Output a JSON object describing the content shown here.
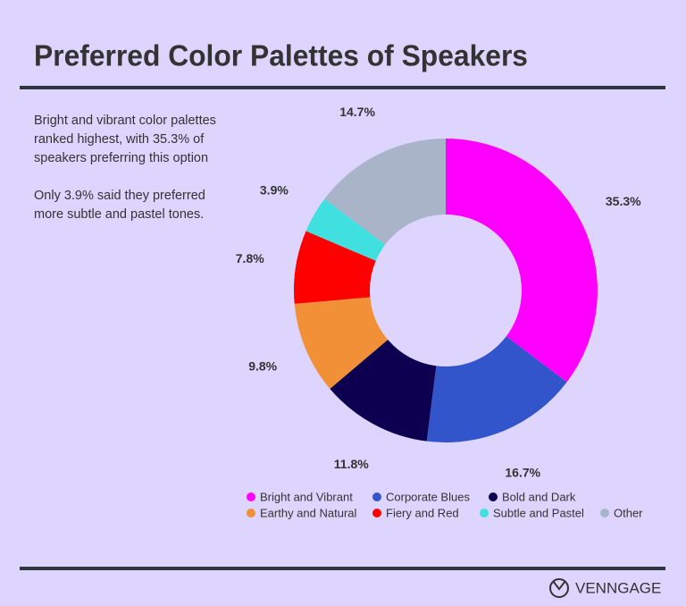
{
  "chart_data": {
    "type": "pie",
    "title": "Preferred Color Palettes of Speakers",
    "annotations": [
      [
        "Bright and vibrant color palettes",
        "ranked highest, with 35.3% of",
        "speakers preferring this option"
      ],
      [
        "Only 3.9% said they preferred",
        "more subtle and pastel tones."
      ]
    ],
    "categories": [
      "Bright and Vibrant",
      "Corporate Blues",
      "Bold and Dark",
      "Earthy and Natural",
      "Fiery and Red",
      "Subtle and Pastel",
      "Other"
    ],
    "values": [
      35.3,
      16.7,
      11.8,
      9.8,
      7.8,
      3.9,
      14.7
    ],
    "value_labels": [
      "35.3%",
      "16.7%",
      "11.8%",
      "9.8%",
      "7.8%",
      "3.9%",
      "14.7%"
    ],
    "colors": [
      "#ff00ff",
      "#3355cc",
      "#0d0050",
      "#f29037",
      "#ff0000",
      "#40e0e0",
      "#a9b4c8"
    ],
    "logo": "VENNGAGE"
  }
}
